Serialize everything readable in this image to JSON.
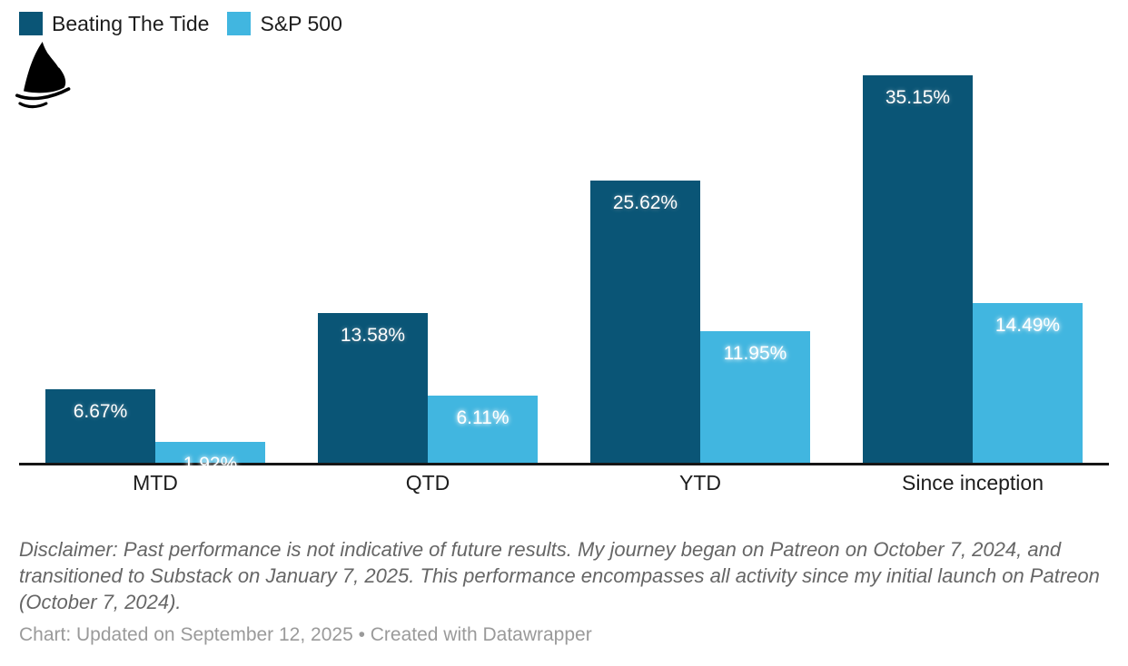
{
  "legend": {
    "items": [
      {
        "label": "Beating The Tide",
        "color": "#0a5576"
      },
      {
        "label": "S&P 500",
        "color": "#41b6e0"
      }
    ]
  },
  "logo": {
    "icon": "shark-fin-logo"
  },
  "chart_data": {
    "type": "bar",
    "title": "",
    "categories": [
      "MTD",
      "QTD",
      "YTD",
      "Since inception"
    ],
    "series": [
      {
        "name": "Beating The Tide",
        "color": "#0a5576",
        "values": [
          6.67,
          13.58,
          25.62,
          35.15
        ],
        "labels": [
          "6.67%",
          "13.58%",
          "25.62%",
          "35.15%"
        ]
      },
      {
        "name": "S&P 500",
        "color": "#41b6e0",
        "values": [
          1.92,
          6.11,
          11.95,
          14.49
        ],
        "labels": [
          "1.92%",
          "6.11%",
          "11.95%",
          "14.49%"
        ]
      }
    ],
    "xlabel": "",
    "ylabel": "",
    "ylim": [
      0,
      38.7
    ],
    "grid": false,
    "legend_position": "top-left",
    "value_label_format": "percent",
    "axis_line_color": "#161616"
  },
  "disclaimer": {
    "text": "Disclaimer: Past performance is not indicative of future results. My journey began on Patreon on October 7, 2024, and transitioned to Substack on January 7, 2025. This performance encompasses all activity since my initial launch on Patreon (October 7, 2024)."
  },
  "footer": {
    "text": "Chart: Updated on September 12, 2025 • Created with Datawrapper"
  }
}
